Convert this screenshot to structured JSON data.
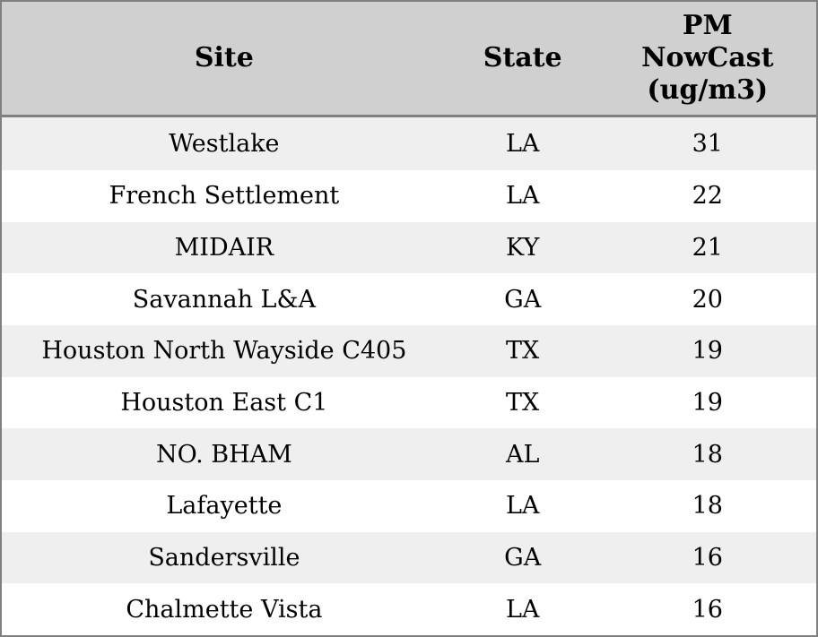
{
  "colors": {
    "header_bg": "#d0d0d0",
    "row_alt_bg": "#efefef",
    "row_bg": "#ffffff",
    "border": "#808080",
    "text": "#000000"
  },
  "display": {
    "columns": [
      {
        "label": "Site"
      },
      {
        "label": "State"
      },
      {
        "label": "PM\nNowCast\n(ug/m3)"
      }
    ]
  },
  "chart_data": {
    "type": "table",
    "columns": [
      "Site",
      "State",
      "PM NowCast (ug/m3)"
    ],
    "rows": [
      [
        "Westlake",
        "LA",
        31
      ],
      [
        "French Settlement",
        "LA",
        22
      ],
      [
        "MIDAIR",
        "KY",
        21
      ],
      [
        "Savannah L&A",
        "GA",
        20
      ],
      [
        "Houston North Wayside C405",
        "TX",
        19
      ],
      [
        "Houston East C1",
        "TX",
        19
      ],
      [
        "NO. BHAM",
        "AL",
        18
      ],
      [
        "Lafayette",
        "LA",
        18
      ],
      [
        "Sandersville",
        "GA",
        16
      ],
      [
        "Chalmette Vista",
        "LA",
        16
      ]
    ]
  }
}
